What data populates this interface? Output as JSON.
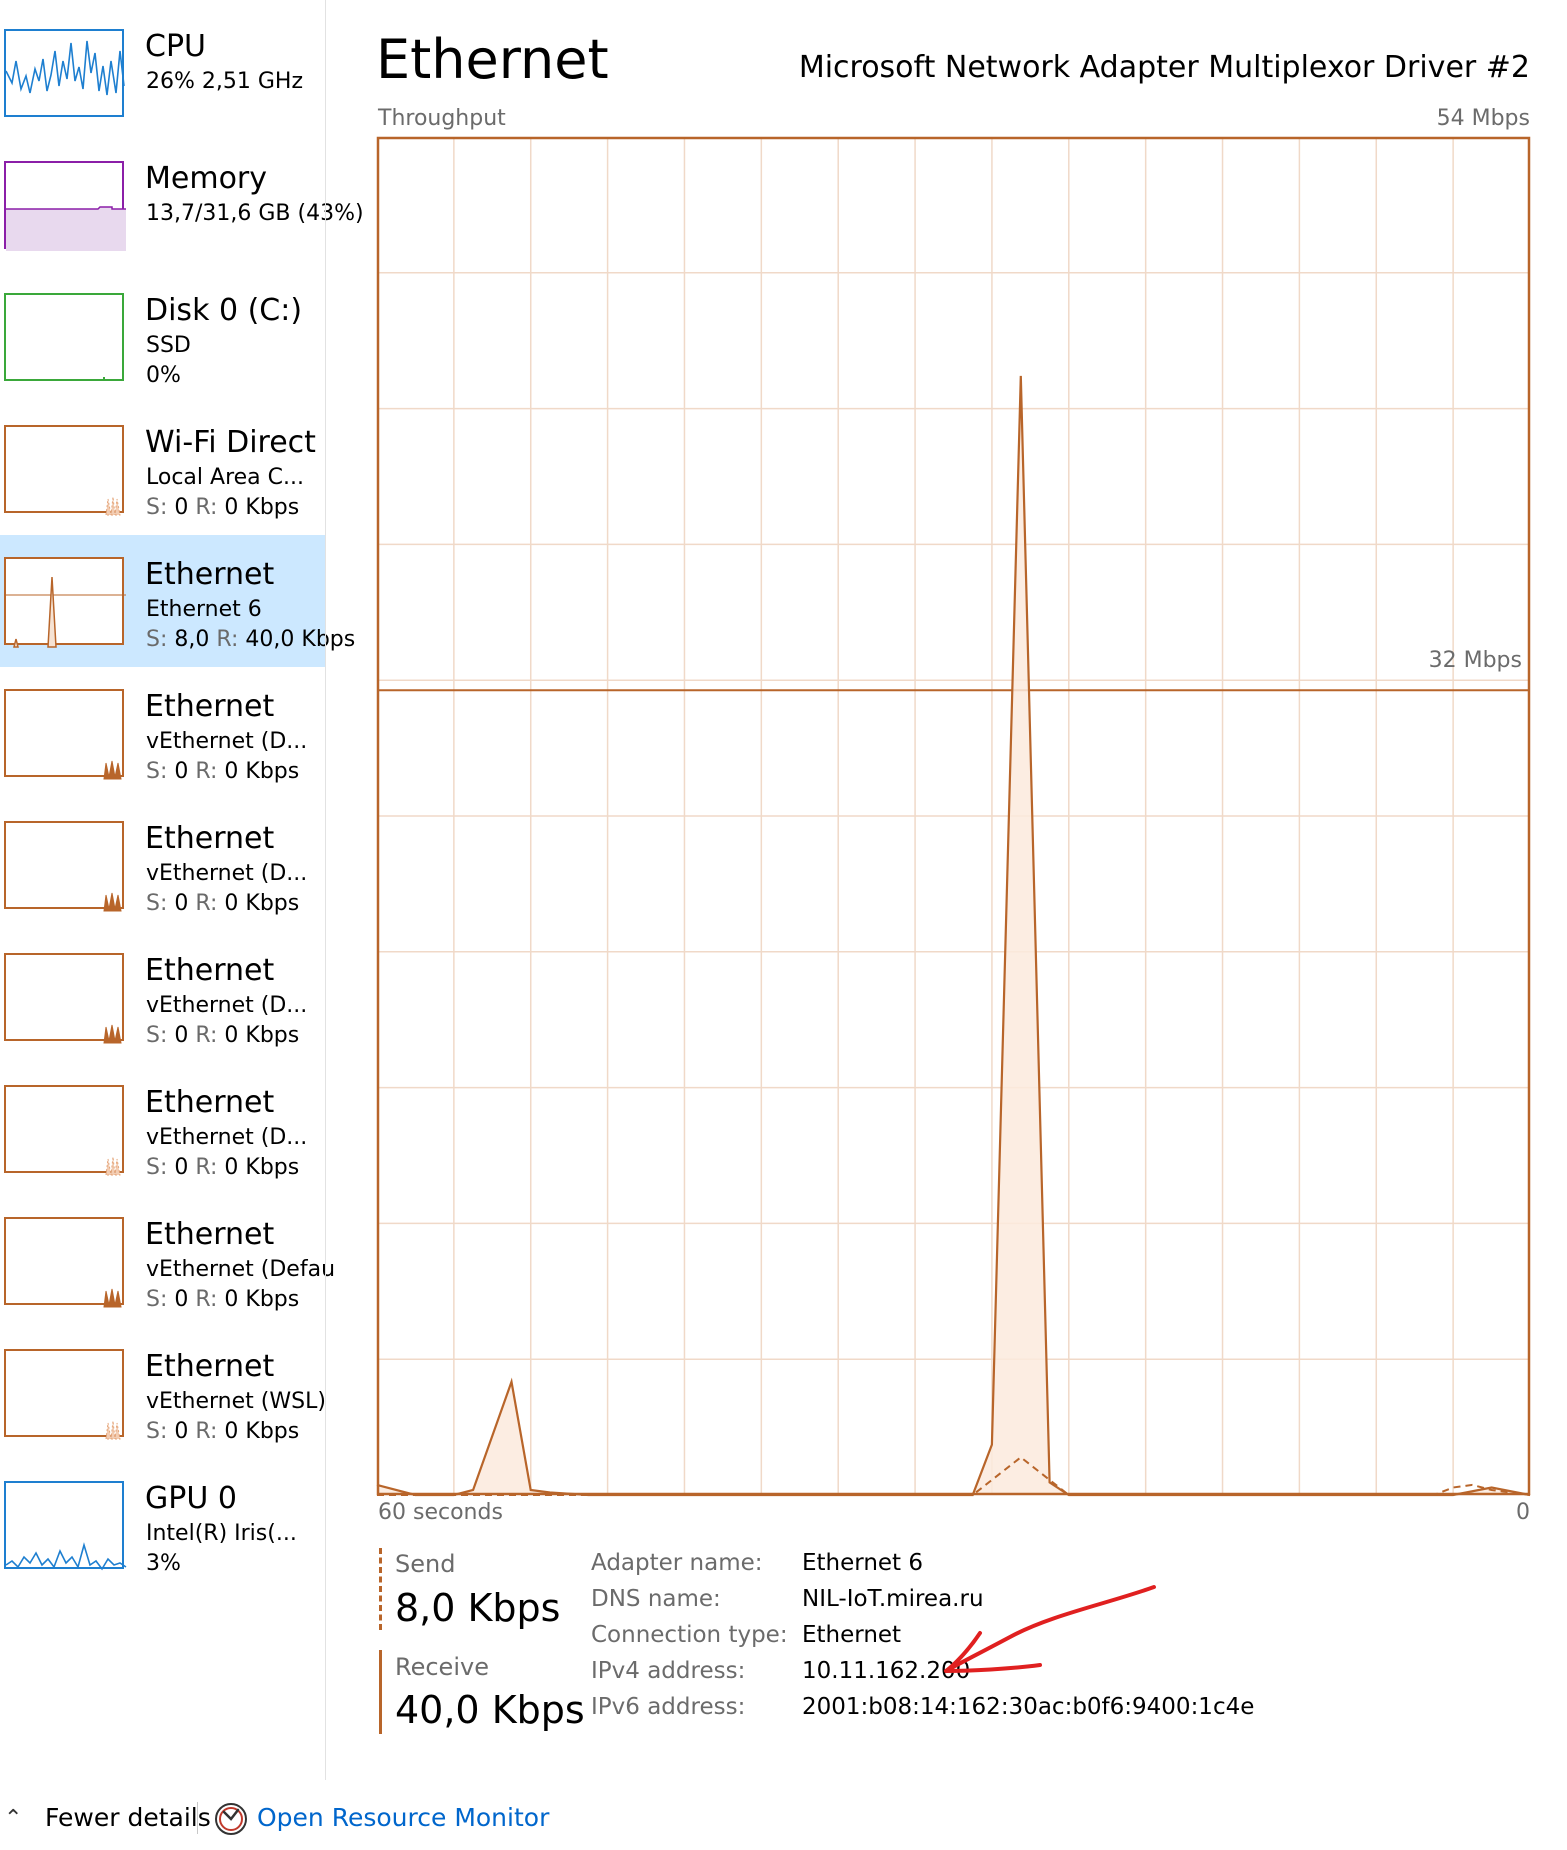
{
  "sidebar": {
    "items": [
      {
        "name": "sidebar-item-cpu",
        "title": "CPU",
        "line2": "26%  2,51 GHz",
        "kind": "cpu",
        "selected": false
      },
      {
        "name": "sidebar-item-memory",
        "title": "Memory",
        "line2": "13,7/31,6 GB (43%)",
        "kind": "memory",
        "selected": false
      },
      {
        "name": "sidebar-item-disk",
        "title": "Disk 0 (C:)",
        "line2": "SSD",
        "line3": "0%",
        "kind": "disk",
        "selected": false
      },
      {
        "name": "sidebar-item-wifi-direct",
        "title": "Wi-Fi Direct",
        "line2": "Local Area C...",
        "line3_send": "0",
        "line3_recv": "0 Kbps",
        "kind": "net-light",
        "selected": false
      },
      {
        "name": "sidebar-item-ethernet-6",
        "title": "Ethernet",
        "line2": "Ethernet 6",
        "line3_send": "8,0",
        "line3_recv": "40,0 Kbps",
        "kind": "net-selected",
        "selected": true
      },
      {
        "name": "sidebar-item-vethernet-1",
        "title": "Ethernet",
        "line2": "vEthernet (D...",
        "line3_send": "0",
        "line3_recv": "0 Kbps",
        "kind": "net-dark",
        "selected": false
      },
      {
        "name": "sidebar-item-vethernet-2",
        "title": "Ethernet",
        "line2": "vEthernet (D...",
        "line3_send": "0",
        "line3_recv": "0 Kbps",
        "kind": "net-dark",
        "selected": false
      },
      {
        "name": "sidebar-item-vethernet-3",
        "title": "Ethernet",
        "line2": "vEthernet (D...",
        "line3_send": "0",
        "line3_recv": "0 Kbps",
        "kind": "net-dark",
        "selected": false
      },
      {
        "name": "sidebar-item-vethernet-4",
        "title": "Ethernet",
        "line2": "vEthernet (D...",
        "line3_send": "0",
        "line3_recv": "0 Kbps",
        "kind": "net-light",
        "selected": false
      },
      {
        "name": "sidebar-item-vethernet-default",
        "title": "Ethernet",
        "line2": "vEthernet (Defau",
        "line3_send": "0",
        "line3_recv": "0 Kbps",
        "kind": "net-dark",
        "selected": false
      },
      {
        "name": "sidebar-item-vethernet-wsl",
        "title": "Ethernet",
        "line2": "vEthernet (WSL)",
        "line3_send": "0",
        "line3_recv": "0 Kbps",
        "kind": "net-light",
        "selected": false
      },
      {
        "name": "sidebar-item-gpu",
        "title": "GPU 0",
        "line2": "Intel(R) Iris(...",
        "line3": "3%",
        "kind": "gpu",
        "selected": false
      }
    ],
    "send_prefix": "S:",
    "recv_prefix": "R:"
  },
  "main": {
    "title": "Ethernet",
    "adapter_model": "Microsoft Network Adapter Multiplexor Driver #2",
    "throughput_label": "Throughput",
    "max_label": "54 Mbps",
    "mid_label": "32 Mbps",
    "time_label": "60 seconds",
    "zero_label": "0"
  },
  "chart_data": {
    "type": "area",
    "title": "Throughput",
    "x_unit": "seconds ago",
    "xlim": [
      60,
      0
    ],
    "ylim": [
      0,
      54
    ],
    "y_unit": "Mbps",
    "reference_line": 32,
    "grid": true,
    "series": [
      {
        "name": "Receive",
        "style": "solid",
        "x": [
          60,
          58,
          56,
          55,
          53,
          52,
          51,
          49,
          47,
          40,
          29,
          28,
          26.5,
          25,
          24,
          20,
          14,
          4,
          2,
          0
        ],
        "y": [
          0.4,
          0,
          0,
          0.2,
          4.5,
          0.2,
          0.1,
          0,
          0,
          0,
          0,
          2,
          44.5,
          0.5,
          0,
          0,
          0,
          0,
          0.3,
          0
        ]
      },
      {
        "name": "Send",
        "style": "dashed",
        "x": [
          60,
          40,
          29,
          26.5,
          25,
          24,
          20,
          5,
          4,
          3,
          2,
          0
        ],
        "y": [
          0,
          0,
          0,
          1.5,
          0.6,
          0,
          0,
          0,
          0.3,
          0.4,
          0.2,
          0
        ]
      }
    ]
  },
  "stats": {
    "send_label": "Send",
    "send_value": "8,0 Kbps",
    "receive_label": "Receive",
    "receive_value": "40,0 Kbps"
  },
  "properties": [
    {
      "key": "Adapter name:",
      "value": "Ethernet 6"
    },
    {
      "key": "DNS name:",
      "value": "NIL-IoT.mirea.ru"
    },
    {
      "key": "Connection type:",
      "value": "Ethernet"
    },
    {
      "key": "IPv4 address:",
      "value": "10.11.162.200"
    },
    {
      "key": "IPv6 address:",
      "value": "2001:b08:14:162:30ac:b0f6:9400:1c4e"
    }
  ],
  "footer": {
    "fewer_details": "Fewer details",
    "open_resource_monitor": "Open Resource Monitor"
  },
  "colors": {
    "network_accent": "#b8652a",
    "network_grid": "#f0d9c8",
    "cpu_accent": "#1e7fd0",
    "memory_accent": "#8b1fa8",
    "disk_accent": "#3aa83a",
    "selected_bg": "#cce8ff",
    "link": "#0066cc",
    "annotation": "#e02020"
  },
  "icons": {
    "fewer_details": "chevron-up-icon",
    "resource_monitor": "resource-monitor-icon"
  }
}
